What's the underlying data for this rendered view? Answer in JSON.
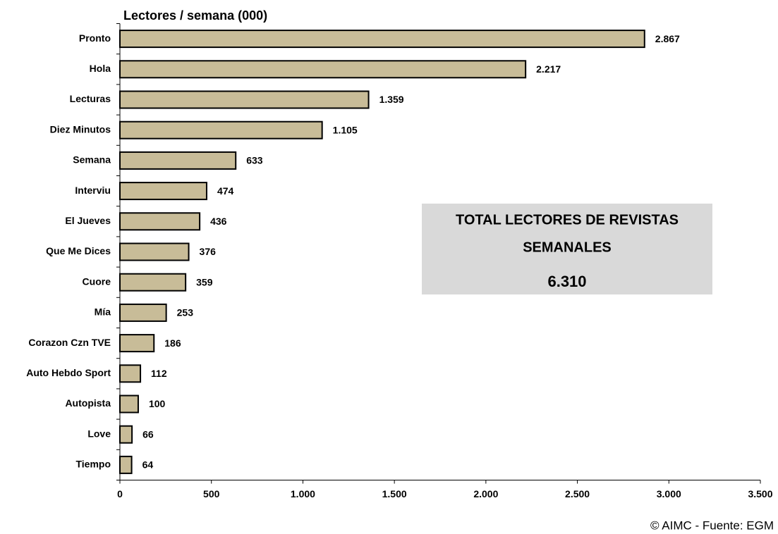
{
  "chart_data": {
    "type": "hbar",
    "title": "Lectores / semana  (000)",
    "categories": [
      "Pronto",
      "Hola",
      "Lecturas",
      "Diez Minutos",
      "Semana",
      "Interviu",
      "El Jueves",
      "Que Me Dices",
      "Cuore",
      "Mía",
      "Corazon Czn TVE",
      "Auto Hebdo Sport",
      "Autopista",
      "Love",
      "Tiempo"
    ],
    "values": [
      2867,
      2217,
      1359,
      1105,
      633,
      474,
      436,
      376,
      359,
      253,
      186,
      112,
      100,
      66,
      64
    ],
    "value_labels": [
      "2.867",
      "2.217",
      "1.359",
      "1.105",
      "633",
      "474",
      "436",
      "376",
      "359",
      "253",
      "186",
      "112",
      "100",
      "66",
      "64"
    ],
    "color": "#c8bc98",
    "xlim": [
      0,
      3500
    ],
    "xticks": [
      0,
      500,
      {
        "value": 1000,
        "label": "1.000"
      },
      {
        "value": 1500,
        "label": "1.500"
      },
      {
        "value": 2000,
        "label": "2.000"
      },
      {
        "value": 2500,
        "label": "2.500"
      },
      {
        "value": 3000,
        "label": "3.000"
      },
      {
        "value": 3500,
        "label": "3.500"
      }
    ],
    "annotation": {
      "lines": [
        "TOTAL LECTORES DE REVISTAS",
        "SEMANALES"
      ],
      "total": "6.310"
    },
    "source": "© AIMC - Fuente: EGM"
  }
}
